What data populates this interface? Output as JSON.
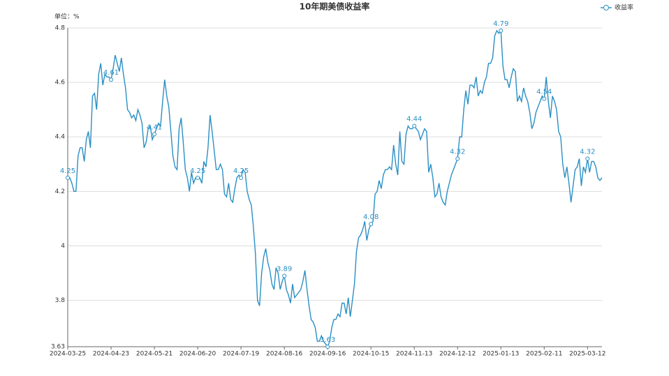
{
  "chart_data": {
    "type": "line",
    "title": "10年期美债收益率",
    "y_axis_label": "单位：%",
    "categories": [
      "2024-03-25",
      null,
      null,
      null,
      null,
      null,
      null,
      null,
      null,
      null,
      null,
      null,
      null,
      null,
      null,
      null,
      null,
      null,
      null,
      null,
      null,
      "2024-04-23",
      null,
      null,
      null,
      null,
      null,
      null,
      null,
      null,
      null,
      null,
      null,
      null,
      null,
      null,
      null,
      null,
      null,
      null,
      null,
      null,
      "2024-05-21",
      null,
      null,
      null,
      null,
      null,
      null,
      null,
      null,
      null,
      null,
      null,
      null,
      null,
      null,
      null,
      null,
      null,
      null,
      null,
      null,
      "2024-06-20",
      null,
      null,
      null,
      null,
      null,
      null,
      null,
      null,
      null,
      null,
      null,
      null,
      null,
      null,
      null,
      null,
      null,
      null,
      null,
      null,
      "2024-07-19",
      null,
      null,
      null,
      null,
      null,
      null,
      null,
      null,
      null,
      null,
      null,
      null,
      null,
      null,
      null,
      null,
      null,
      null,
      null,
      null,
      "2024-08-16",
      null,
      null,
      null,
      null,
      null,
      null,
      null,
      null,
      null,
      null,
      null,
      null,
      null,
      null,
      null,
      null,
      null,
      null,
      null,
      null,
      "2024-09-16",
      null,
      null,
      null,
      null,
      null,
      null,
      null,
      null,
      null,
      null,
      null,
      null,
      null,
      null,
      null,
      null,
      null,
      null,
      null,
      null,
      "2024-10-15",
      null,
      null,
      null,
      null,
      null,
      null,
      null,
      null,
      null,
      null,
      null,
      null,
      null,
      null,
      null,
      null,
      null,
      null,
      null,
      null,
      "2024-11-13",
      null,
      null,
      null,
      null,
      null,
      null,
      null,
      null,
      null,
      null,
      null,
      null,
      null,
      null,
      null,
      null,
      null,
      null,
      null,
      null,
      "2024-12-12",
      null,
      null,
      null,
      null,
      null,
      null,
      null,
      null,
      null,
      null,
      null,
      null,
      null,
      null,
      null,
      null,
      null,
      null,
      null,
      null,
      "2025-01-13",
      null,
      null,
      null,
      null,
      null,
      null,
      null,
      null,
      null,
      null,
      null,
      null,
      null,
      null,
      null,
      null,
      null,
      null,
      null,
      null,
      "2025-02-11",
      null,
      null,
      null,
      null,
      null,
      null,
      null,
      null,
      null,
      null,
      null,
      null,
      null,
      null,
      null,
      null,
      null,
      null,
      null,
      null,
      "2025-03-12",
      null,
      null,
      null,
      null,
      null,
      null,
      null
    ],
    "series": [
      {
        "name": "收益率",
        "color": "#2a8fc4",
        "values": [
          4.25,
          4.25,
          4.23,
          4.2,
          4.2,
          4.33,
          4.36,
          4.36,
          4.31,
          4.39,
          4.42,
          4.36,
          4.55,
          4.56,
          4.5,
          4.63,
          4.67,
          4.59,
          4.63,
          4.62,
          4.62,
          4.61,
          4.65,
          4.7,
          4.67,
          4.64,
          4.69,
          4.63,
          4.58,
          4.5,
          4.49,
          4.47,
          4.48,
          4.46,
          4.5,
          4.48,
          4.45,
          4.36,
          4.38,
          4.43,
          4.44,
          4.39,
          4.41,
          4.43,
          4.45,
          4.44,
          4.53,
          4.61,
          4.55,
          4.51,
          4.42,
          4.33,
          4.29,
          4.28,
          4.43,
          4.47,
          4.38,
          4.28,
          4.25,
          4.2,
          4.27,
          4.23,
          4.25,
          4.25,
          4.25,
          4.23,
          4.31,
          4.29,
          4.36,
          4.48,
          4.42,
          4.35,
          4.28,
          4.28,
          4.3,
          4.28,
          4.19,
          4.18,
          4.23,
          4.17,
          4.16,
          4.21,
          4.25,
          4.26,
          4.25,
          4.28,
          4.27,
          4.2,
          4.17,
          4.15,
          4.07,
          3.97,
          3.8,
          3.78,
          3.9,
          3.96,
          3.99,
          3.94,
          3.91,
          3.86,
          3.84,
          3.92,
          3.9,
          3.84,
          3.87,
          3.89,
          3.84,
          3.82,
          3.79,
          3.86,
          3.81,
          3.82,
          3.83,
          3.84,
          3.87,
          3.91,
          3.84,
          3.78,
          3.73,
          3.72,
          3.7,
          3.65,
          3.65,
          3.67,
          3.65,
          3.64,
          3.63,
          3.65,
          3.7,
          3.73,
          3.73,
          3.75,
          3.74,
          3.79,
          3.79,
          3.75,
          3.81,
          3.74,
          3.8,
          3.86,
          3.98,
          4.03,
          4.04,
          4.06,
          4.09,
          4.02,
          4.06,
          4.08,
          4.09,
          4.19,
          4.2,
          4.24,
          4.21,
          4.26,
          4.28,
          4.28,
          4.29,
          4.28,
          4.37,
          4.3,
          4.26,
          4.42,
          4.31,
          4.3,
          4.41,
          4.44,
          4.43,
          4.43,
          4.44,
          4.43,
          4.42,
          4.39,
          4.41,
          4.43,
          4.42,
          4.27,
          4.3,
          4.25,
          4.18,
          4.19,
          4.23,
          4.18,
          4.16,
          4.15,
          4.2,
          4.23,
          4.26,
          4.28,
          4.3,
          4.32,
          4.4,
          4.4,
          4.5,
          4.57,
          4.52,
          4.59,
          4.59,
          4.58,
          4.62,
          4.55,
          4.57,
          4.56,
          4.6,
          4.62,
          4.67,
          4.67,
          4.69,
          4.77,
          4.79,
          4.78,
          4.79,
          4.66,
          4.61,
          4.61,
          4.58,
          4.62,
          4.65,
          4.64,
          4.53,
          4.55,
          4.53,
          4.58,
          4.55,
          4.53,
          4.49,
          4.43,
          4.45,
          4.49,
          4.51,
          4.53,
          4.55,
          4.54,
          4.62,
          4.53,
          4.47,
          4.55,
          4.53,
          4.5,
          4.42,
          4.4,
          4.3,
          4.25,
          4.29,
          4.23,
          4.16,
          4.22,
          4.28,
          4.29,
          4.32,
          4.22,
          4.29,
          4.27,
          4.32,
          4.27,
          4.31,
          4.31,
          4.29,
          4.25,
          4.24,
          4.25
        ]
      }
    ],
    "ylim": [
      3.63,
      4.8
    ],
    "yticks": [
      3.63,
      3.8,
      4,
      4.2,
      4.4,
      4.6,
      4.8
    ],
    "grid": true,
    "legend": "top-right"
  }
}
